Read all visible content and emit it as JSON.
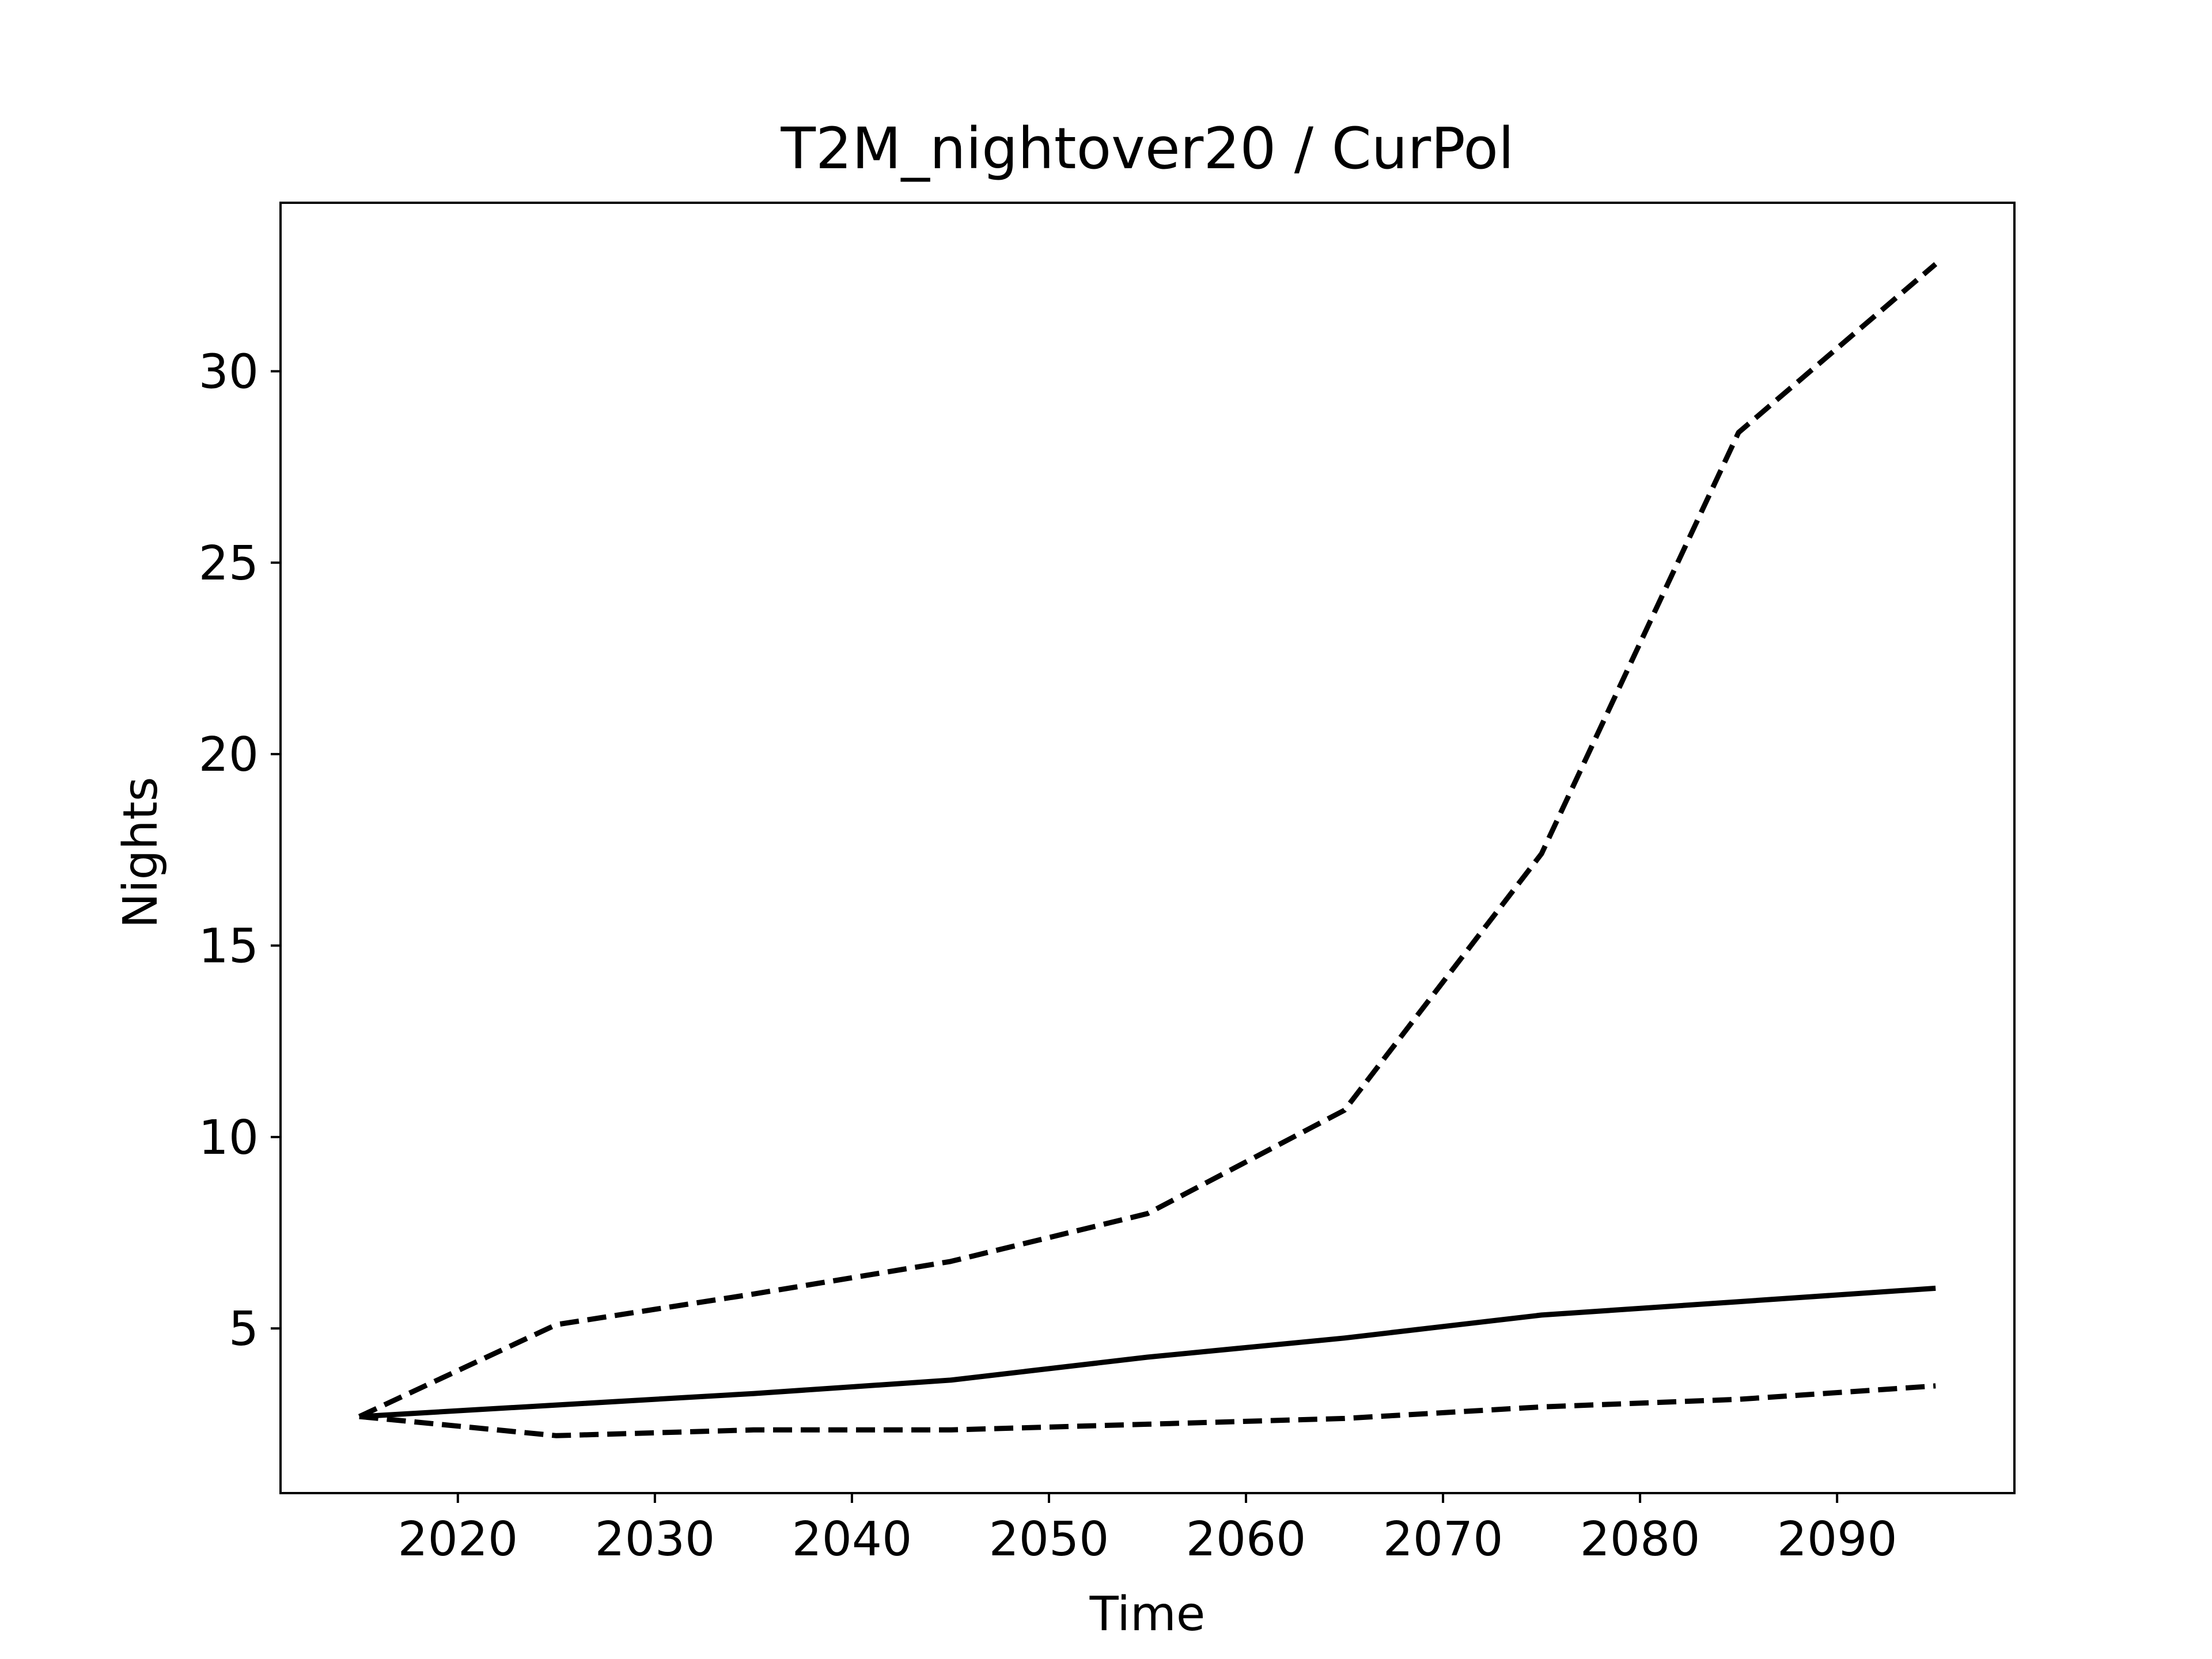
{
  "chart_data": {
    "type": "line",
    "title": "T2M_nightover20 / CurPol",
    "xlabel": "Time",
    "ylabel": "Nights",
    "xlim": [
      2011,
      2099
    ],
    "ylim": [
      0.7,
      34.4
    ],
    "xticks": [
      2020,
      2030,
      2040,
      2050,
      2060,
      2070,
      2080,
      2090
    ],
    "yticks": [
      5,
      10,
      15,
      20,
      25,
      30
    ],
    "grid": false,
    "series": [
      {
        "style": "solid",
        "color": "#000000",
        "x": [
          2015,
          2025,
          2035,
          2045,
          2055,
          2065,
          2075,
          2085,
          2095
        ],
        "y": [
          2.7,
          3.0,
          3.3,
          3.65,
          4.25,
          4.75,
          5.35,
          5.7,
          6.05
        ]
      },
      {
        "style": "dashed",
        "color": "#000000",
        "x": [
          2015,
          2025,
          2035,
          2045,
          2055,
          2065,
          2075,
          2085,
          2095
        ],
        "y": [
          2.7,
          5.1,
          5.9,
          6.75,
          8.0,
          10.7,
          17.4,
          28.4,
          32.8
        ]
      },
      {
        "style": "dashed",
        "color": "#000000",
        "x": [
          2015,
          2025,
          2035,
          2045,
          2055,
          2065,
          2075,
          2085,
          2095
        ],
        "y": [
          2.7,
          2.2,
          2.35,
          2.35,
          2.5,
          2.65,
          2.95,
          3.15,
          3.5
        ]
      }
    ]
  }
}
